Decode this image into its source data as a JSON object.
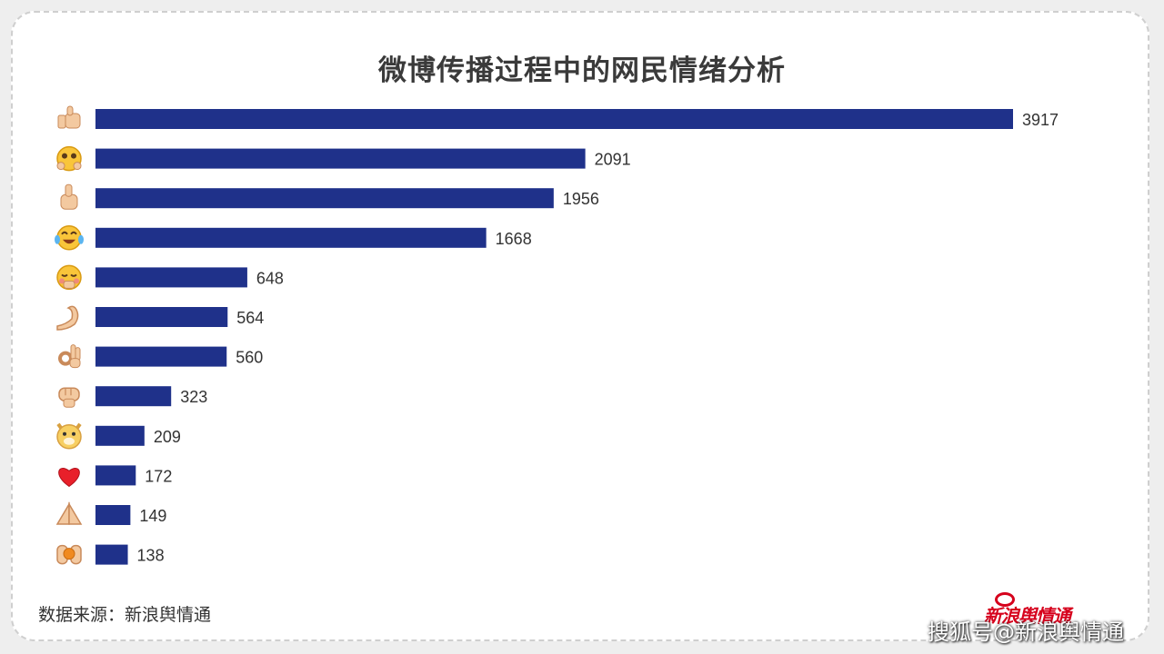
{
  "title": "微博传播过程中的网民情绪分析",
  "source_text": "数据来源：新浪舆情通",
  "brand_text": "新浪舆情通",
  "watermark_text": "搜狐号@新浪舆情通",
  "colors": {
    "bar": "#1f318a",
    "label": "#333333",
    "title": "#3a3a3a",
    "brand": "#d6001c"
  },
  "chart_data": {
    "type": "bar",
    "orientation": "horizontal",
    "categories": [
      "thumbs-up-icon",
      "hug-face-icon",
      "thumb-icon",
      "laughing-crying-icon",
      "blushing-face-icon",
      "flexed-bicep-icon",
      "ok-hand-icon",
      "fist-icon",
      "doge-icon",
      "heart-icon",
      "pray-icon",
      "clapping-hands-icon"
    ],
    "values": [
      3917,
      2091,
      1956,
      1668,
      648,
      564,
      560,
      323,
      209,
      172,
      149,
      138
    ],
    "xlim": [
      0,
      3917
    ],
    "grid": false,
    "legend": "none"
  }
}
